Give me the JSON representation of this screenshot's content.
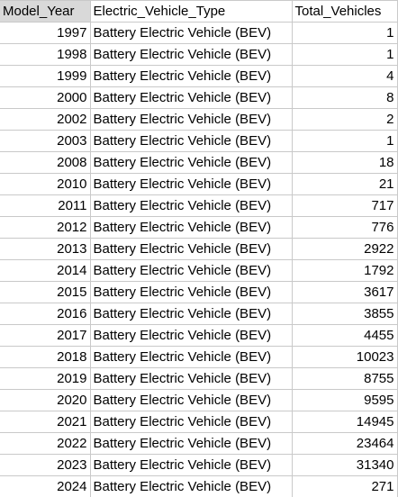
{
  "headers": [
    "Model_Year",
    "Electric_Vehicle_Type",
    "Total_Vehicles"
  ],
  "rows": [
    [
      "1997",
      "Battery Electric Vehicle (BEV)",
      "1"
    ],
    [
      "1998",
      "Battery Electric Vehicle (BEV)",
      "1"
    ],
    [
      "1999",
      "Battery Electric Vehicle (BEV)",
      "4"
    ],
    [
      "2000",
      "Battery Electric Vehicle (BEV)",
      "8"
    ],
    [
      "2002",
      "Battery Electric Vehicle (BEV)",
      "2"
    ],
    [
      "2003",
      "Battery Electric Vehicle (BEV)",
      "1"
    ],
    [
      "2008",
      "Battery Electric Vehicle (BEV)",
      "18"
    ],
    [
      "2010",
      "Battery Electric Vehicle (BEV)",
      "21"
    ],
    [
      "2011",
      "Battery Electric Vehicle (BEV)",
      "717"
    ],
    [
      "2012",
      "Battery Electric Vehicle (BEV)",
      "776"
    ],
    [
      "2013",
      "Battery Electric Vehicle (BEV)",
      "2922"
    ],
    [
      "2014",
      "Battery Electric Vehicle (BEV)",
      "1792"
    ],
    [
      "2015",
      "Battery Electric Vehicle (BEV)",
      "3617"
    ],
    [
      "2016",
      "Battery Electric Vehicle (BEV)",
      "3855"
    ],
    [
      "2017",
      "Battery Electric Vehicle (BEV)",
      "4455"
    ],
    [
      "2018",
      "Battery Electric Vehicle (BEV)",
      "10023"
    ],
    [
      "2019",
      "Battery Electric Vehicle (BEV)",
      "8755"
    ],
    [
      "2020",
      "Battery Electric Vehicle (BEV)",
      "9595"
    ],
    [
      "2021",
      "Battery Electric Vehicle (BEV)",
      "14945"
    ],
    [
      "2022",
      "Battery Electric Vehicle (BEV)",
      "23464"
    ],
    [
      "2023",
      "Battery Electric Vehicle (BEV)",
      "31340"
    ],
    [
      "2024",
      "Battery Electric Vehicle (BEV)",
      "271"
    ]
  ],
  "colors": {
    "gridline": "#c9c9c9",
    "selected_header_fill": "#d9d9d9",
    "text": "#000000"
  }
}
